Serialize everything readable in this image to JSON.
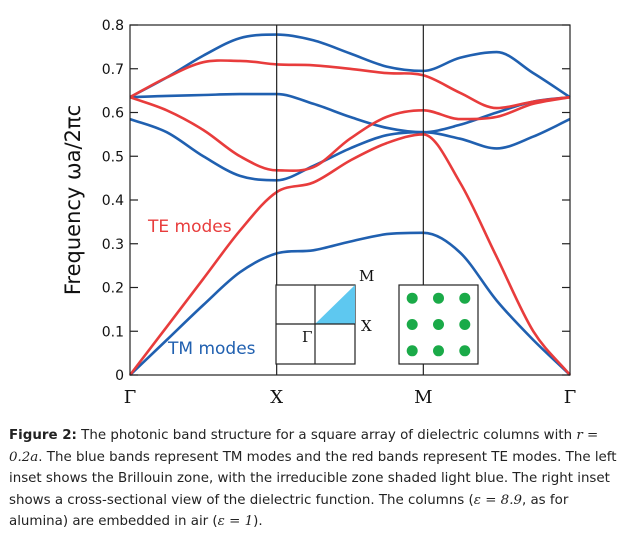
{
  "chart_data": {
    "type": "line",
    "ylabel": "Frequency ωa/2πc",
    "ylim": [
      0,
      0.8
    ],
    "yticks": [
      "0",
      "0.1",
      "0.2",
      "0.3",
      "0.4",
      "0.5",
      "0.6",
      "0.7",
      "0.8"
    ],
    "xticks": [
      "Γ",
      "X",
      "M",
      "Γ"
    ],
    "x_range": [
      0,
      3
    ],
    "annotations": {
      "te": "TE modes",
      "tm": "TM modes"
    },
    "colors": {
      "tm": "#2060b0",
      "te": "#e83c3c",
      "axis": "#222222",
      "ibz": "#5ec8f0",
      "dots": "#1aaa48"
    },
    "insets": {
      "bz_labels": {
        "gamma": "Γ",
        "x": "X",
        "m": "M"
      }
    },
    "series": [
      {
        "mode": "TM",
        "x": [
          0,
          0.25,
          0.5,
          0.75,
          1,
          1.25,
          1.5,
          1.75,
          2,
          2.25,
          2.5,
          2.75,
          3
        ],
        "y": [
          0,
          0.08,
          0.16,
          0.235,
          0.278,
          0.285,
          0.305,
          0.322,
          0.325,
          0.28,
          0.17,
          0.08,
          0
        ]
      },
      {
        "mode": "TM",
        "x": [
          0,
          0.25,
          0.5,
          0.75,
          1,
          1.25,
          1.5,
          1.75,
          2,
          2.25,
          2.5,
          2.75,
          3
        ],
        "y": [
          0.585,
          0.555,
          0.5,
          0.455,
          0.445,
          0.478,
          0.518,
          0.548,
          0.555,
          0.54,
          0.518,
          0.545,
          0.585
        ]
      },
      {
        "mode": "TM",
        "x": [
          0,
          0.25,
          0.5,
          0.75,
          1,
          1.25,
          1.5,
          1.75,
          2,
          2.25,
          2.5,
          2.75,
          3
        ],
        "y": [
          0.635,
          0.638,
          0.64,
          0.642,
          0.642,
          0.62,
          0.59,
          0.565,
          0.555,
          0.572,
          0.6,
          0.625,
          0.635
        ]
      },
      {
        "mode": "TM",
        "x": [
          0,
          0.25,
          0.5,
          0.75,
          1,
          1.25,
          1.5,
          1.75,
          2,
          2.25,
          2.5,
          2.75,
          3
        ],
        "y": [
          0.635,
          0.68,
          0.73,
          0.77,
          0.778,
          0.765,
          0.735,
          0.705,
          0.695,
          0.725,
          0.738,
          0.69,
          0.635
        ]
      },
      {
        "mode": "TE",
        "x": [
          0,
          0.25,
          0.5,
          0.75,
          1,
          1.25,
          1.5,
          1.75,
          2,
          2.25,
          2.5,
          2.75,
          3
        ],
        "y": [
          0,
          0.11,
          0.22,
          0.33,
          0.418,
          0.44,
          0.49,
          0.53,
          0.55,
          0.44,
          0.27,
          0.1,
          0
        ]
      },
      {
        "mode": "TE",
        "x": [
          0,
          0.25,
          0.5,
          0.75,
          1,
          1.25,
          1.5,
          1.75,
          2,
          2.25,
          2.5,
          2.75,
          3
        ],
        "y": [
          0.635,
          0.605,
          0.56,
          0.5,
          0.468,
          0.475,
          0.54,
          0.59,
          0.605,
          0.585,
          0.59,
          0.62,
          0.635
        ]
      },
      {
        "mode": "TE",
        "x": [
          0,
          0.25,
          0.5,
          0.75,
          1,
          1.25,
          1.5,
          1.75,
          2,
          2.25,
          2.5,
          2.75,
          3
        ],
        "y": [
          0.635,
          0.68,
          0.715,
          0.718,
          0.71,
          0.708,
          0.7,
          0.69,
          0.685,
          0.645,
          0.61,
          0.625,
          0.635
        ]
      }
    ]
  },
  "caption": {
    "label": "Figure 2:",
    "text_1": "The photonic band structure for a square array of dielectric columns with",
    "r_eq": "r = 0.2a",
    "text_2": ". The blue bands represent TM modes and the red bands represent TE modes. The left inset shows the Brillouin zone, with the irreducible zone shaded light blue. The right inset shows a cross-sectional view of the dielectric function. The columns (",
    "eps_1": "ε = 8.9",
    "text_3": ", as for alumina) are embedded in air (",
    "eps_2": "ε = 1",
    "text_4": ")."
  }
}
